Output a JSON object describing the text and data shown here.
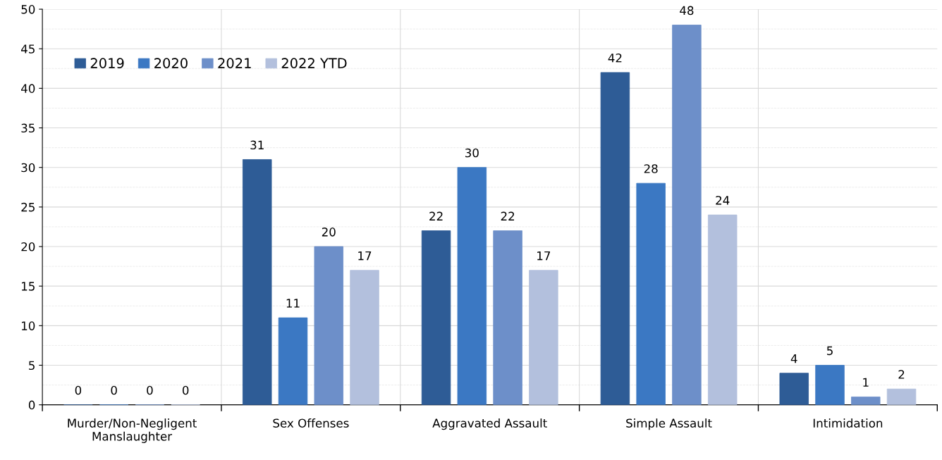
{
  "chart_data": {
    "type": "bar",
    "categories": [
      "Murder/Non-Negligent\nManslaughter",
      "Sex Offenses",
      "Aggravated Assault",
      "Simple Assault",
      "Intimidation"
    ],
    "series": [
      {
        "name": "2019",
        "color": "#2e5c96",
        "values": [
          0,
          31,
          22,
          42,
          4
        ]
      },
      {
        "name": "2020",
        "color": "#3b78c3",
        "values": [
          0,
          11,
          30,
          28,
          5
        ]
      },
      {
        "name": "2021",
        "color": "#6d8fc9",
        "values": [
          0,
          20,
          22,
          48,
          1
        ]
      },
      {
        "name": "2022 YTD",
        "color": "#b3c0dd",
        "values": [
          0,
          17,
          17,
          24,
          2
        ]
      }
    ],
    "ylim": [
      0,
      50
    ],
    "yticks": [
      0,
      5,
      10,
      15,
      20,
      25,
      30,
      35,
      40,
      45,
      50
    ],
    "grid": true,
    "legend": "top left",
    "data_labels": true
  }
}
